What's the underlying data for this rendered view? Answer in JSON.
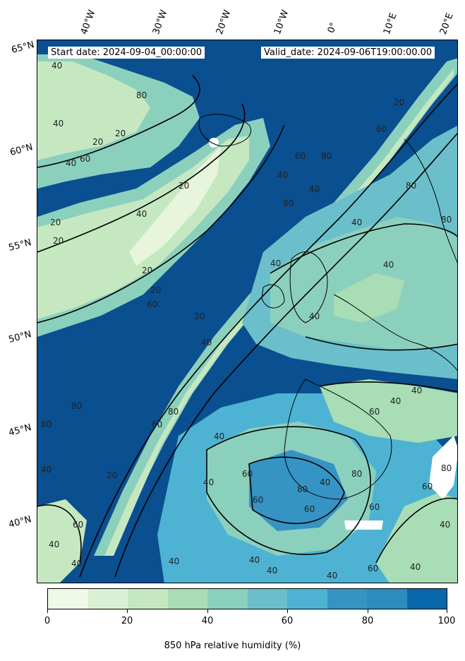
{
  "header": {
    "start_date": "Start date: 2024-09-04_00:00:00",
    "valid_date": "Valid_date: 2024-09-06T19:00:00.00"
  },
  "longitude_labels": [
    "40°W",
    "30°W",
    "20°W",
    "10°W",
    "0°",
    "10°E",
    "20°E"
  ],
  "latitude_labels": [
    "65°N",
    "60°N",
    "55°N",
    "50°N",
    "45°N",
    "40°N"
  ],
  "contour_labels": [
    "20",
    "40",
    "60",
    "80"
  ],
  "colorbar": {
    "title": "850 hPa relative humidity (%)",
    "ticks": [
      "0",
      "20",
      "40",
      "60",
      "80",
      "100"
    ],
    "colors": [
      "#f0f9e8",
      "#daf0d4",
      "#c5e8c1",
      "#a8ddb5",
      "#8bd0bd",
      "#6bbfca",
      "#4eb3d3",
      "#3594c4",
      "#2b8cbe",
      "#0868ac",
      "#084a91"
    ]
  },
  "style": {
    "dark": "#0a4f8f",
    "mid": "#3a8fc4",
    "light_mid": "#7cc8c8",
    "light": "#c5e8c1",
    "pale": "#e6f5dc",
    "land_line": "#000000"
  }
}
